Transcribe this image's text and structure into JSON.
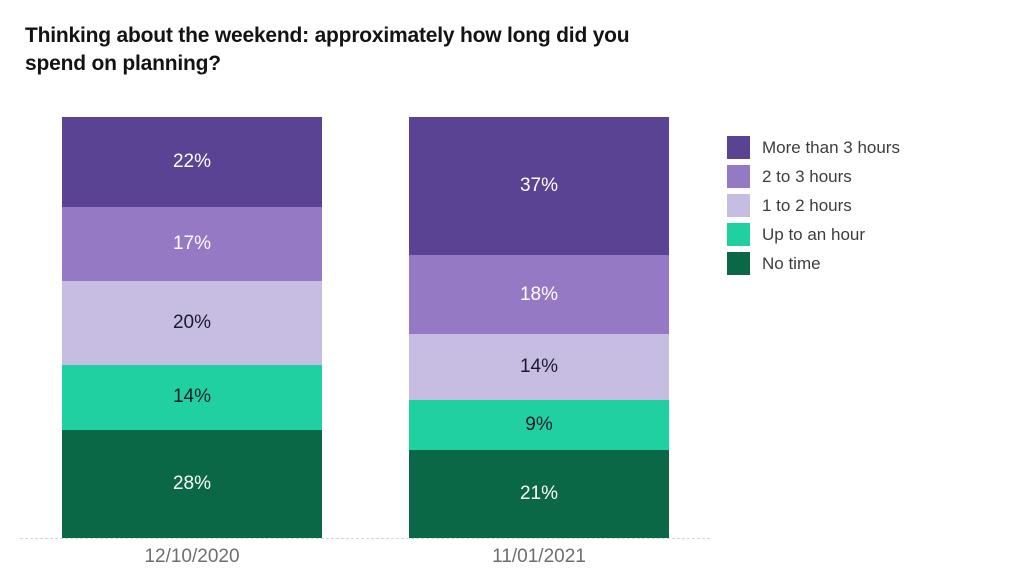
{
  "title": "Thinking about the weekend: approximately how long did you spend on planning?",
  "chart_data": {
    "type": "bar",
    "stacked": true,
    "value_suffix": "%",
    "categories": [
      "12/10/2020",
      "11/01/2021"
    ],
    "series": [
      {
        "name": "More than 3 hours",
        "color": "#5a4392",
        "text_color": "#ffffff",
        "values": [
          22,
          37
        ]
      },
      {
        "name": "2 to 3 hours",
        "color": "#9579c4",
        "text_color": "#ffffff",
        "values": [
          17,
          18
        ]
      },
      {
        "name": "1 to 2 hours",
        "color": "#c7bce2",
        "text_color": "#1c1b2e",
        "values": [
          20,
          14
        ]
      },
      {
        "name": "Up to an hour",
        "color": "#21d0a0",
        "text_color": "#1c1b2e",
        "values": [
          14,
          9
        ]
      },
      {
        "name": "No time",
        "color": "#0a6846",
        "text_color": "#ffffff",
        "values": [
          28,
          21
        ]
      }
    ],
    "legend_position": "right",
    "axis": {
      "baseline_style": "dashed",
      "baseline_color": "#d6d6d6",
      "tick_label_color": "#6e6e6e"
    }
  }
}
